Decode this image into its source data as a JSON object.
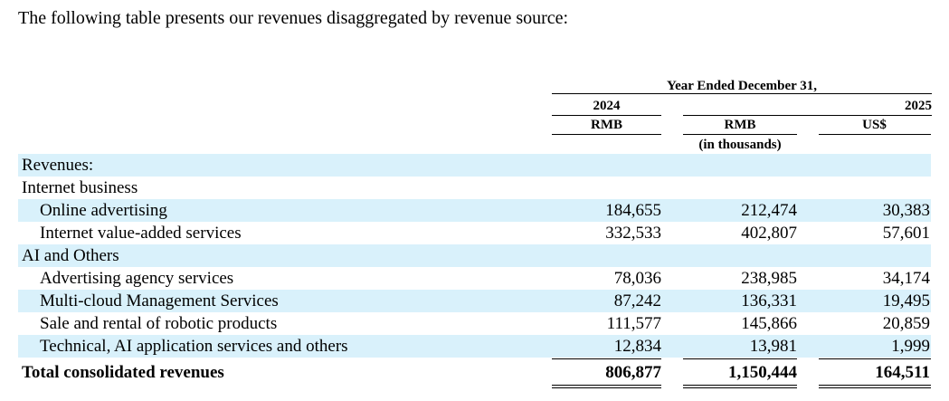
{
  "intro": "The following table presents our revenues disaggregated by revenue source:",
  "header": {
    "period": "Year Ended December 31,",
    "year1": "2024",
    "year2": "2025",
    "cur1": "RMB",
    "cur2": "RMB",
    "cur3": "US$",
    "units": "(in thousands)"
  },
  "rows": [
    {
      "label": "Revenues:",
      "v1": "",
      "v2": "",
      "v3": ""
    },
    {
      "label": "Internet business",
      "v1": "",
      "v2": "",
      "v3": ""
    },
    {
      "label": "Online advertising",
      "v1": "184,655",
      "v2": "212,474",
      "v3": "30,383"
    },
    {
      "label": "Internet value-added services",
      "v1": "332,533",
      "v2": "402,807",
      "v3": "57,601"
    },
    {
      "label": "AI and Others",
      "v1": "",
      "v2": "",
      "v3": ""
    },
    {
      "label": "Advertising agency services",
      "v1": "78,036",
      "v2": "238,985",
      "v3": "34,174"
    },
    {
      "label": "Multi-cloud Management Services",
      "v1": "87,242",
      "v2": "136,331",
      "v3": "19,495"
    },
    {
      "label": "Sale and rental of robotic products",
      "v1": "111,577",
      "v2": "145,866",
      "v3": "20,859"
    },
    {
      "label": "Technical, AI application services and others",
      "v1": "12,834",
      "v2": "13,981",
      "v3": "1,999"
    },
    {
      "label": "Total consolidated revenues",
      "v1": "806,877",
      "v2": "1,150,444",
      "v3": "164,511"
    }
  ]
}
